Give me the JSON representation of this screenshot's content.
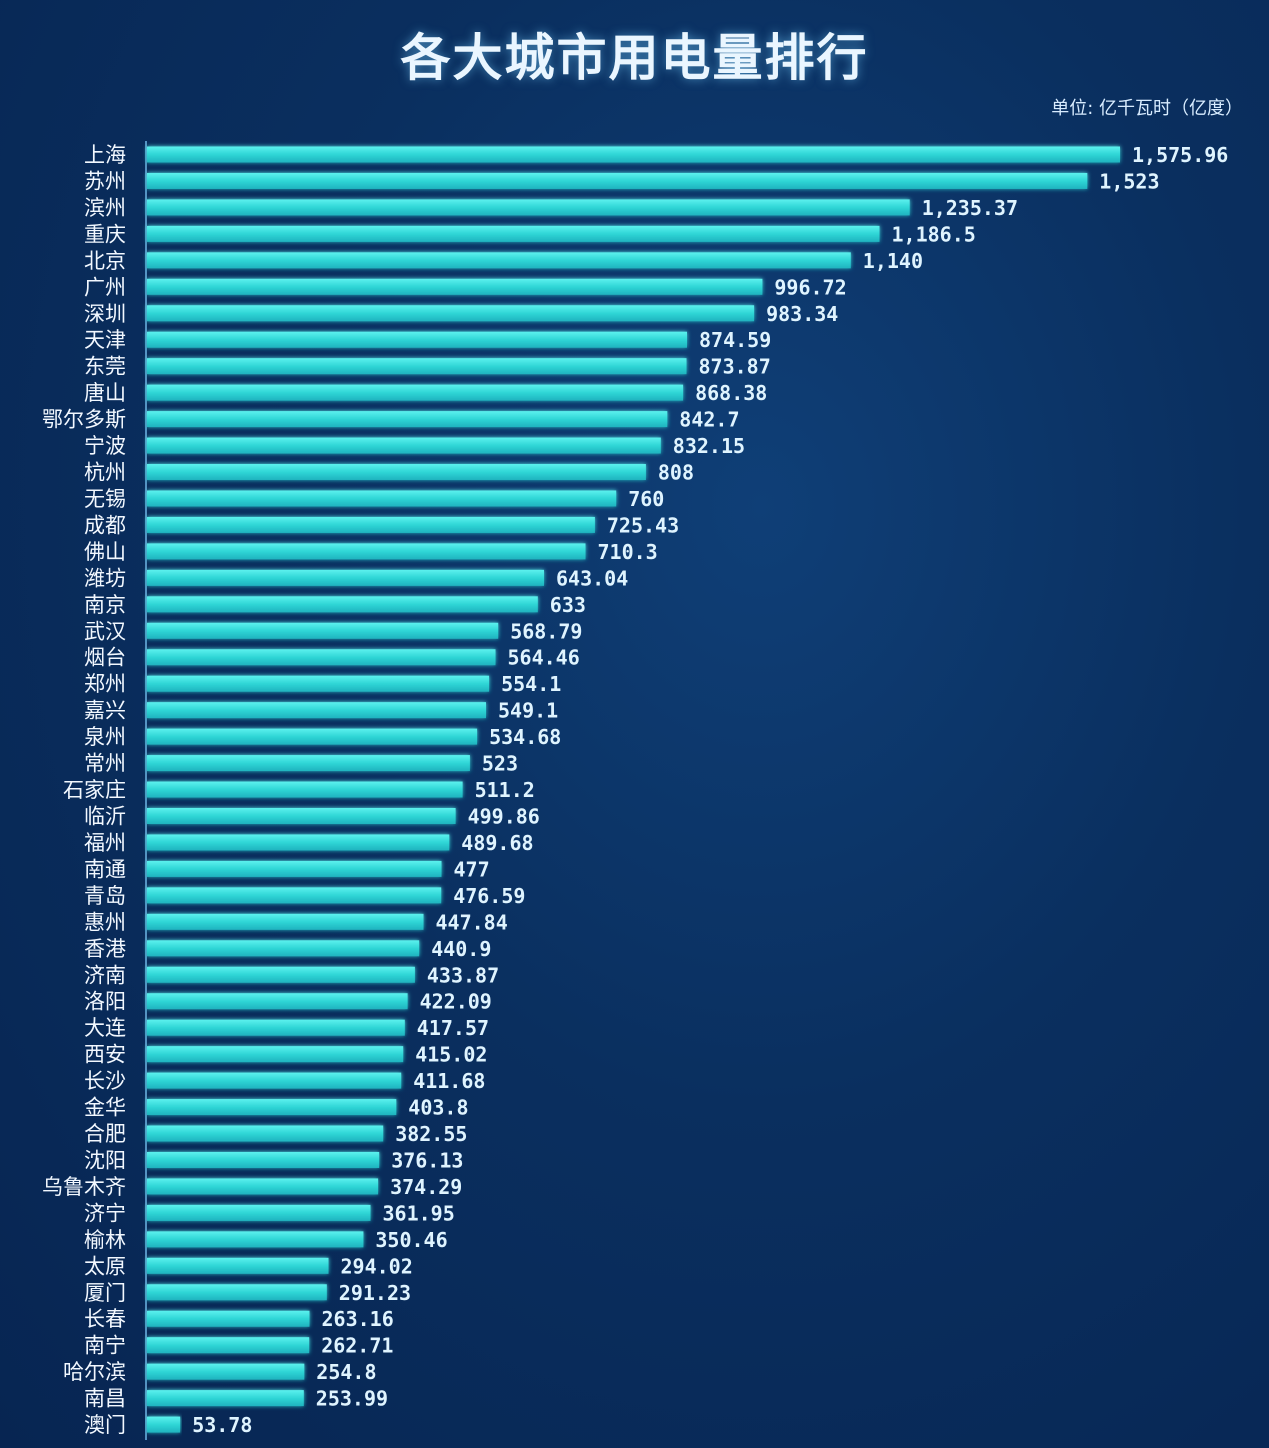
{
  "chart_data": {
    "type": "bar",
    "orientation": "horizontal",
    "title": "各大城市用电量排行",
    "unit": "单位: 亿千瓦时（亿度）",
    "categories": [
      "上海",
      "苏州",
      "滨州",
      "重庆",
      "北京",
      "广州",
      "深圳",
      "天津",
      "东莞",
      "唐山",
      "鄂尔多斯",
      "宁波",
      "杭州",
      "无锡",
      "成都",
      "佛山",
      "潍坊",
      "南京",
      "武汉",
      "烟台",
      "郑州",
      "嘉兴",
      "泉州",
      "常州",
      "石家庄",
      "临沂",
      "福州",
      "南通",
      "青岛",
      "惠州",
      "香港",
      "济南",
      "洛阳",
      "大连",
      "西安",
      "长沙",
      "金华",
      "合肥",
      "沈阳",
      "乌鲁木齐",
      "济宁",
      "榆林",
      "太原",
      "厦门",
      "长春",
      "南宁",
      "哈尔滨",
      "南昌",
      "澳门"
    ],
    "values": [
      1575.96,
      1523,
      1235.37,
      1186.5,
      1140,
      996.72,
      983.34,
      874.59,
      873.87,
      868.38,
      842.7,
      832.15,
      808,
      760,
      725.43,
      710.3,
      643.04,
      633,
      568.79,
      564.46,
      554.1,
      549.1,
      534.68,
      523,
      511.2,
      499.86,
      489.68,
      477,
      476.59,
      447.84,
      440.9,
      433.87,
      422.09,
      417.57,
      415.02,
      411.68,
      403.8,
      382.55,
      376.13,
      374.29,
      361.95,
      350.46,
      294.02,
      291.23,
      263.16,
      262.71,
      254.8,
      253.99,
      53.78
    ],
    "value_labels": [
      "1,575.96",
      "1,523",
      "1,235.37",
      "1,186.5",
      "1,140",
      "996.72",
      "983.34",
      "874.59",
      "873.87",
      "868.38",
      "842.7",
      "832.15",
      "808",
      "760",
      "725.43",
      "710.3",
      "643.04",
      "633",
      "568.79",
      "564.46",
      "554.1",
      "549.1",
      "534.68",
      "523",
      "511.2",
      "499.86",
      "489.68",
      "477",
      "476.59",
      "447.84",
      "440.9",
      "433.87",
      "422.09",
      "417.57",
      "415.02",
      "411.68",
      "403.8",
      "382.55",
      "376.13",
      "374.29",
      "361.95",
      "350.46",
      "294.02",
      "291.23",
      "263.16",
      "262.71",
      "254.8",
      "253.99",
      "53.78"
    ],
    "xlim": [
      0,
      1575.96
    ],
    "grid": false,
    "bar_color": "#2fd6d6"
  }
}
